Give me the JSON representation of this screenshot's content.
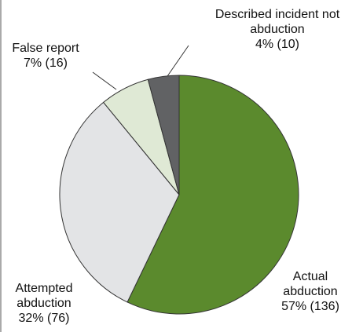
{
  "chart_data": {
    "type": "pie",
    "categories": [
      "Actual abduction",
      "Attempted abduction",
      "False report",
      "Described incident not abduction"
    ],
    "values": [
      136,
      76,
      16,
      10
    ],
    "value_labels": [
      "57% (136)",
      "32% (76)",
      "7% (16)",
      "4% (10)"
    ],
    "colors": [
      "#5b8a2d",
      "#e3e4e6",
      "#dfe9d5",
      "#616264"
    ]
  }
}
